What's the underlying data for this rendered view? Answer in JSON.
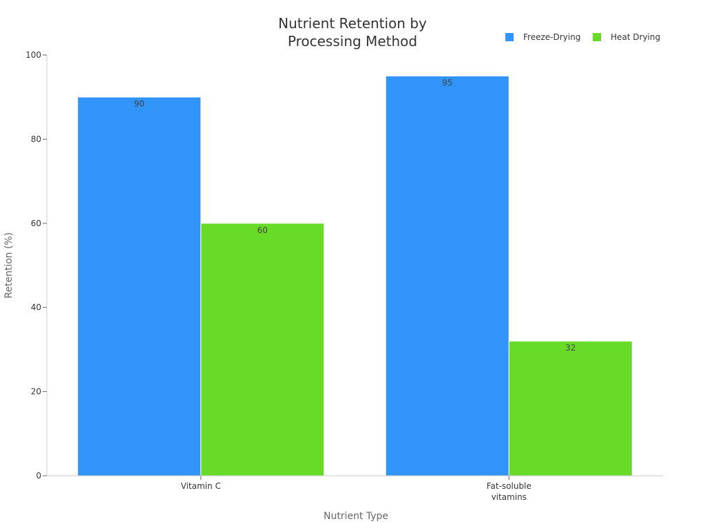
{
  "chart_data": {
    "type": "bar",
    "title_lines": [
      "Nutrient Retention by",
      "Processing Method"
    ],
    "xlabel": "Nutrient Type",
    "ylabel": "Retention (%)",
    "categories": [
      [
        "Vitamin C"
      ],
      [
        "Fat-soluble",
        "vitamins"
      ]
    ],
    "series": [
      {
        "name": "Freeze-Drying",
        "color": "#3094f9",
        "values": [
          90,
          95
        ]
      },
      {
        "name": "Heat Drying",
        "color": "#68db28",
        "values": [
          60,
          32
        ]
      }
    ],
    "ylim": [
      0,
      100
    ],
    "yticks": [
      0,
      20,
      40,
      60,
      80,
      100
    ],
    "grid": false,
    "legend_position": "top-right",
    "data_labels": true
  }
}
